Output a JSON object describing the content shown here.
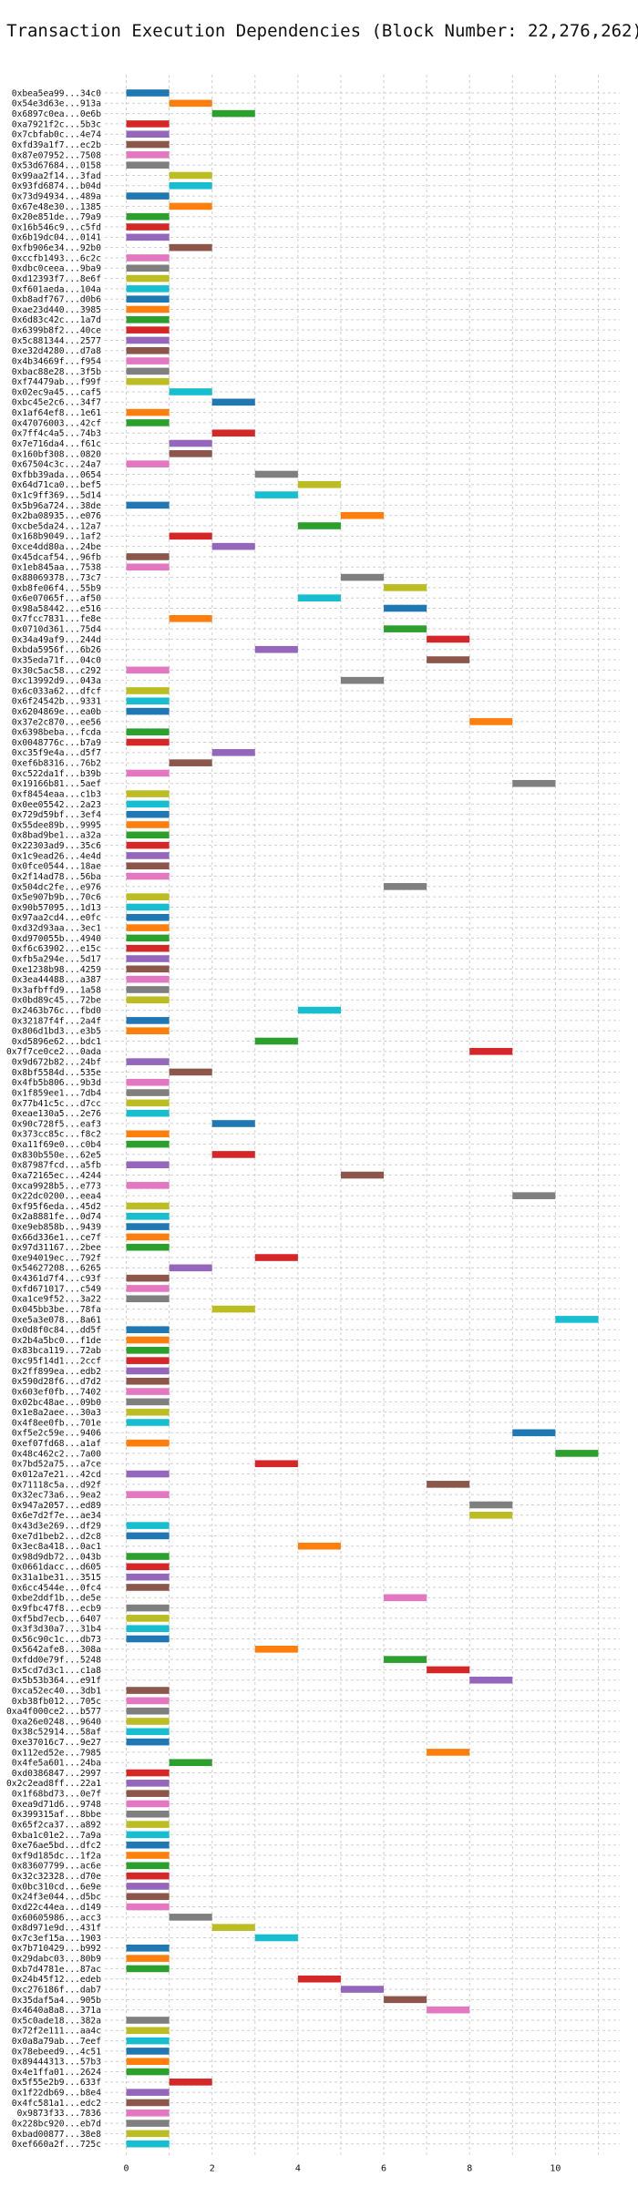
{
  "chart_data": {
    "type": "gantt",
    "title": "Transaction Execution Dependencies (Block Number: 22,276,262)",
    "xlabel": "",
    "ylabel": "",
    "xlim": [
      -0.5,
      11.5
    ],
    "xticks": [
      0,
      2,
      4,
      6,
      8,
      10
    ],
    "grid": true,
    "bar_length": 1,
    "palette": [
      "#1f77b4",
      "#ff7f0e",
      "#2ca02c",
      "#d62728",
      "#9467bd",
      "#8c564b",
      "#e377c2",
      "#7f7f7f",
      "#bcbd22",
      "#17becf"
    ],
    "transactions": [
      {
        "label": "0xbea5ea99...34c0",
        "start": 0
      },
      {
        "label": "0x54e3d63e...913a",
        "start": 1
      },
      {
        "label": "0x6897c0ea...0e6b",
        "start": 2
      },
      {
        "label": "0xa7921f2c...5b3c",
        "start": 0
      },
      {
        "label": "0x7cbfab0c...4e74",
        "start": 0
      },
      {
        "label": "0xfd39a1f7...ec2b",
        "start": 0
      },
      {
        "label": "0x87e07952...7508",
        "start": 0
      },
      {
        "label": "0x53d67684...0158",
        "start": 0
      },
      {
        "label": "0x99aa2f14...3fad",
        "start": 1
      },
      {
        "label": "0x93fd6874...b04d",
        "start": 1
      },
      {
        "label": "0x73d94934...489a",
        "start": 0
      },
      {
        "label": "0x67e48e30...1385",
        "start": 1
      },
      {
        "label": "0x20e851de...79a9",
        "start": 0
      },
      {
        "label": "0x16b546c9...c5fd",
        "start": 0
      },
      {
        "label": "0x6b19dc04...0141",
        "start": 0
      },
      {
        "label": "0xfb906e34...92b0",
        "start": 1
      },
      {
        "label": "0xccfb1493...6c2c",
        "start": 0
      },
      {
        "label": "0xdbc0ceea...9ba9",
        "start": 0
      },
      {
        "label": "0xd12393f7...8e6f",
        "start": 0
      },
      {
        "label": "0xf601aeda...104a",
        "start": 0
      },
      {
        "label": "0xb8adf767...d0b6",
        "start": 0
      },
      {
        "label": "0xae23d440...3985",
        "start": 0
      },
      {
        "label": "0x6d83c42c...1a7d",
        "start": 0
      },
      {
        "label": "0x6399b8f2...40ce",
        "start": 0
      },
      {
        "label": "0x5c881344...2577",
        "start": 0
      },
      {
        "label": "0xe32d4280...d7a8",
        "start": 0
      },
      {
        "label": "0x4b34669f...f954",
        "start": 0
      },
      {
        "label": "0xbac88e28...3f5b",
        "start": 0
      },
      {
        "label": "0xf74479ab...f99f",
        "start": 0
      },
      {
        "label": "0x02ec9a45...caf5",
        "start": 1
      },
      {
        "label": "0xbc45e2c6...34f7",
        "start": 2
      },
      {
        "label": "0x1af64ef8...1e61",
        "start": 0
      },
      {
        "label": "0x47076003...42cf",
        "start": 0
      },
      {
        "label": "0x7ff4c4a5...74b3",
        "start": 2
      },
      {
        "label": "0x7e716da4...f61c",
        "start": 1
      },
      {
        "label": "0x160bf308...0820",
        "start": 1
      },
      {
        "label": "0x67504c3c...24a7",
        "start": 0
      },
      {
        "label": "0xfbb39ada...0654",
        "start": 3
      },
      {
        "label": "0x64d71ca0...bef5",
        "start": 4
      },
      {
        "label": "0x1c9ff369...5d14",
        "start": 3
      },
      {
        "label": "0x5b96a724...38de",
        "start": 0
      },
      {
        "label": "0x2ba08935...e076",
        "start": 5
      },
      {
        "label": "0xcbe5da24...12a7",
        "start": 4
      },
      {
        "label": "0x168b9049...1af2",
        "start": 1
      },
      {
        "label": "0xce4dd80a...24be",
        "start": 2
      },
      {
        "label": "0x45dcaf54...96fb",
        "start": 0
      },
      {
        "label": "0x1eb845aa...7538",
        "start": 0
      },
      {
        "label": "0x88069378...73c7",
        "start": 5
      },
      {
        "label": "0xb8fe06f4...55b9",
        "start": 6
      },
      {
        "label": "0x6e07065f...af50",
        "start": 4
      },
      {
        "label": "0x98a58442...e516",
        "start": 6
      },
      {
        "label": "0x7fcc7831...fe8e",
        "start": 1
      },
      {
        "label": "0x0710d361...75d4",
        "start": 6
      },
      {
        "label": "0x34a49af9...244d",
        "start": 7
      },
      {
        "label": "0xbda5956f...6b26",
        "start": 3
      },
      {
        "label": "0x35eda71f...04c0",
        "start": 7
      },
      {
        "label": "0x30c5ac58...c292",
        "start": 0
      },
      {
        "label": "0xc13992d9...043a",
        "start": 5
      },
      {
        "label": "0x6c033a62...dfcf",
        "start": 0
      },
      {
        "label": "0x6f24542b...9331",
        "start": 0
      },
      {
        "label": "0x6204869e...ea0b",
        "start": 0
      },
      {
        "label": "0x37e2c870...ee56",
        "start": 8
      },
      {
        "label": "0x6398beba...fcda",
        "start": 0
      },
      {
        "label": "0x0048776c...b7a9",
        "start": 0
      },
      {
        "label": "0xc35f9e4a...d5f7",
        "start": 2
      },
      {
        "label": "0xef6b8316...76b2",
        "start": 1
      },
      {
        "label": "0xc522da1f...b39b",
        "start": 0
      },
      {
        "label": "0x19166b81...5aef",
        "start": 9
      },
      {
        "label": "0xf8454eaa...c1b3",
        "start": 0
      },
      {
        "label": "0x0ee05542...2a23",
        "start": 0
      },
      {
        "label": "0x729d59bf...3ef4",
        "start": 0
      },
      {
        "label": "0x55dee89b...9995",
        "start": 0
      },
      {
        "label": "0x8bad9be1...a32a",
        "start": 0
      },
      {
        "label": "0x22303ad9...35c6",
        "start": 0
      },
      {
        "label": "0x1c9ead26...4e4d",
        "start": 0
      },
      {
        "label": "0x0fce0544...18ae",
        "start": 0
      },
      {
        "label": "0x2f14ad78...56ba",
        "start": 0
      },
      {
        "label": "0x504dc2fe...e976",
        "start": 6
      },
      {
        "label": "0x5e907b9b...70c6",
        "start": 0
      },
      {
        "label": "0x90b57095...1d13",
        "start": 0
      },
      {
        "label": "0x97aa2cd4...e0fc",
        "start": 0
      },
      {
        "label": "0xd32d93aa...3ec1",
        "start": 0
      },
      {
        "label": "0xd970055b...4940",
        "start": 0
      },
      {
        "label": "0xf6c63902...e15c",
        "start": 0
      },
      {
        "label": "0xfb5a294e...5d17",
        "start": 0
      },
      {
        "label": "0xe1238b98...4259",
        "start": 0
      },
      {
        "label": "0x3ea44488...a387",
        "start": 0
      },
      {
        "label": "0x3afbffd9...1a58",
        "start": 0
      },
      {
        "label": "0x0bd89c45...72be",
        "start": 0
      },
      {
        "label": "0x2463b76c...fbd0",
        "start": 4
      },
      {
        "label": "0x32187f4f...2a4f",
        "start": 0
      },
      {
        "label": "0x806d1bd3...e3b5",
        "start": 0
      },
      {
        "label": "0xd5896e62...bdc1",
        "start": 3
      },
      {
        "label": "0x7f7ce0ce2...0ada",
        "start": 8
      },
      {
        "label": "0x9d672b82...24bf",
        "start": 0
      },
      {
        "label": "0x8bf5584d...535e",
        "start": 1
      },
      {
        "label": "0x4fb5b806...9b3d",
        "start": 0
      },
      {
        "label": "0x1f859ee1...7db4",
        "start": 0
      },
      {
        "label": "0x77b41c5c...d7cc",
        "start": 0
      },
      {
        "label": "0xeae130a5...2e76",
        "start": 0
      },
      {
        "label": "0x90c728f5...eaf3",
        "start": 2
      },
      {
        "label": "0x373cc85c...f8c2",
        "start": 0
      },
      {
        "label": "0xa11f69e0...c0b4",
        "start": 0
      },
      {
        "label": "0x830b550e...62e5",
        "start": 2
      },
      {
        "label": "0x87987fcd...a5fb",
        "start": 0
      },
      {
        "label": "0xa72165ec...4244",
        "start": 5
      },
      {
        "label": "0xca9928b5...e773",
        "start": 0
      },
      {
        "label": "0x22dc0200...eea4",
        "start": 9
      },
      {
        "label": "0xf95f6eda...45d2",
        "start": 0
      },
      {
        "label": "0x2a8881fe...0d74",
        "start": 0
      },
      {
        "label": "0xe9eb858b...9439",
        "start": 0
      },
      {
        "label": "0x66d336e1...ce7f",
        "start": 0
      },
      {
        "label": "0x97d31167...2bee",
        "start": 0
      },
      {
        "label": "0xe94019ec...792f",
        "start": 3
      },
      {
        "label": "0x54627208...6265",
        "start": 1
      },
      {
        "label": "0x4361d7f4...c93f",
        "start": 0
      },
      {
        "label": "0xfd671017...c549",
        "start": 0
      },
      {
        "label": "0xa1ce9f52...3a22",
        "start": 0
      },
      {
        "label": "0x045bb3be...78fa",
        "start": 2
      },
      {
        "label": "0xe5a3e078...8a61",
        "start": 10
      },
      {
        "label": "0x0d8f0c84...dd5f",
        "start": 0
      },
      {
        "label": "0x2b4a5bc0...f1de",
        "start": 0
      },
      {
        "label": "0x83bca119...72ab",
        "start": 0
      },
      {
        "label": "0xc95f14d1...2ccf",
        "start": 0
      },
      {
        "label": "0x2ff899ea...edb2",
        "start": 0
      },
      {
        "label": "0x590d28f6...d7d2",
        "start": 0
      },
      {
        "label": "0x603ef0fb...7402",
        "start": 0
      },
      {
        "label": "0x02bc48ae...09b0",
        "start": 0
      },
      {
        "label": "0x1e8a2aee...30a3",
        "start": 0
      },
      {
        "label": "0x4f8ee0fb...701e",
        "start": 0
      },
      {
        "label": "0xf5e2c59e...9406",
        "start": 9
      },
      {
        "label": "0xef07fd68...a1af",
        "start": 0
      },
      {
        "label": "0x48c462c2...7a00",
        "start": 10
      },
      {
        "label": "0x7bd52a75...a7ce",
        "start": 3
      },
      {
        "label": "0x012a7e21...42cd",
        "start": 0
      },
      {
        "label": "0x71118c5a...d92f",
        "start": 7
      },
      {
        "label": "0x32ec73a6...9ea2",
        "start": 0
      },
      {
        "label": "0x947a2057...ed89",
        "start": 8
      },
      {
        "label": "0x6e7d2f7e...ae34",
        "start": 8
      },
      {
        "label": "0x43d3e269...df29",
        "start": 0
      },
      {
        "label": "0xe7d1beb2...d2c8",
        "start": 0
      },
      {
        "label": "0x3ec8a418...0ac1",
        "start": 4
      },
      {
        "label": "0x98d9db72...043b",
        "start": 0
      },
      {
        "label": "0x0661dacc...d605",
        "start": 0
      },
      {
        "label": "0x31a1be31...3515",
        "start": 0
      },
      {
        "label": "0x6cc4544e...0fc4",
        "start": 0
      },
      {
        "label": "0xbe2ddf1b...de5e",
        "start": 6
      },
      {
        "label": "0x9fbc47f8...ecb9",
        "start": 0
      },
      {
        "label": "0xf5bd7ecb...6407",
        "start": 0
      },
      {
        "label": "0x3f3d30a7...31b4",
        "start": 0
      },
      {
        "label": "0x56c90c1c...db73",
        "start": 0
      },
      {
        "label": "0x5642afe8...308a",
        "start": 3
      },
      {
        "label": "0xfdd0e79f...5248",
        "start": 6
      },
      {
        "label": "0x5cd7d3c1...c1a8",
        "start": 7
      },
      {
        "label": "0x5b53b364...e91f",
        "start": 8
      },
      {
        "label": "0xca52ec40...3db1",
        "start": 0
      },
      {
        "label": "0xb38fb012...705c",
        "start": 0
      },
      {
        "label": "0xa4f000ce2...b577",
        "start": 0
      },
      {
        "label": "0xa26e0248...9640",
        "start": 0
      },
      {
        "label": "0x38c52914...58af",
        "start": 0
      },
      {
        "label": "0xe37016c7...9e27",
        "start": 0
      },
      {
        "label": "0x112ed52e...7985",
        "start": 7
      },
      {
        "label": "0x4fe5a601...24ba",
        "start": 1
      },
      {
        "label": "0xd0386847...2997",
        "start": 0
      },
      {
        "label": "0x2c2ead8ff...22a1",
        "start": 0
      },
      {
        "label": "0x1f68bd73...0e7f",
        "start": 0
      },
      {
        "label": "0xea9d71d6...9748",
        "start": 0
      },
      {
        "label": "0x399315af...8bbe",
        "start": 0
      },
      {
        "label": "0x65f2ca37...a892",
        "start": 0
      },
      {
        "label": "0xba1c01e2...7a9a",
        "start": 0
      },
      {
        "label": "0xe76ae5bd...dfc2",
        "start": 0
      },
      {
        "label": "0xf9d185dc...1f2a",
        "start": 0
      },
      {
        "label": "0x83607799...ac6e",
        "start": 0
      },
      {
        "label": "0x32c32328...d70e",
        "start": 0
      },
      {
        "label": "0x0bc310cd...6e9e",
        "start": 0
      },
      {
        "label": "0x24f3e044...d5bc",
        "start": 0
      },
      {
        "label": "0xd22c44ea...d149",
        "start": 0
      },
      {
        "label": "0x60605986...acc3",
        "start": 1
      },
      {
        "label": "0x8d971e9d...431f",
        "start": 2
      },
      {
        "label": "0x7c3ef15a...1903",
        "start": 3
      },
      {
        "label": "0x7b710429...b992",
        "start": 0
      },
      {
        "label": "0x29dabc03...80b9",
        "start": 0
      },
      {
        "label": "0xb7d4781e...87ac",
        "start": 0
      },
      {
        "label": "0x24b45f12...edeb",
        "start": 4
      },
      {
        "label": "0xc276186f...dab7",
        "start": 5
      },
      {
        "label": "0x35daf5a4...905b",
        "start": 6
      },
      {
        "label": "0x4640a8a8...371a",
        "start": 7
      },
      {
        "label": "0x5c0ade18...382a",
        "start": 0
      },
      {
        "label": "0x72f2e111...aa4c",
        "start": 0
      },
      {
        "label": "0x0a8a79ab...7eef",
        "start": 0
      },
      {
        "label": "0x78ebeed9...4c51",
        "start": 0
      },
      {
        "label": "0x89444313...57b3",
        "start": 0
      },
      {
        "label": "0x4e1ffa01...2624",
        "start": 0
      },
      {
        "label": "0x5f55e2b9...633f",
        "start": 1
      },
      {
        "label": "0x1f22db69...b8e4",
        "start": 0
      },
      {
        "label": "0x4fc581a1...edc2",
        "start": 0
      },
      {
        "label": "0x9873f33...7836",
        "start": 0
      },
      {
        "label": "0x228bc920...eb7d",
        "start": 0
      },
      {
        "label": "0xbad00877...38e8",
        "start": 0
      },
      {
        "label": "0xef660a2f...725c",
        "start": 0
      }
    ]
  }
}
